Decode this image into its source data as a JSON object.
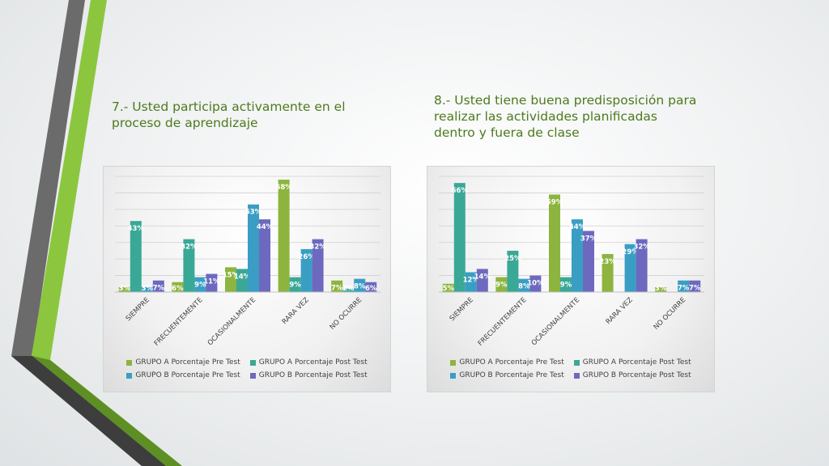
{
  "slide": {
    "title_left": "7.- Usted participa activamente en el proceso de aprendizaje",
    "title_right": "8.- Usted tiene buena predisposición para realizar las actividades planificadas dentro y fuera de clase"
  },
  "colors": {
    "grupo_a_pre": "#8db43e",
    "grupo_a_post": "#3aa896",
    "grupo_b_pre": "#3a9ec4",
    "grupo_b_post": "#6d69bf",
    "title": "#4d7a1c"
  },
  "legend_labels": [
    "GRUPO A Porcentaje Pre Test",
    "GRUPO A Porcentaje Post Test",
    "GRUPO B Porcentaje Pre Test",
    "GRUPO B Porcentaje Post Test"
  ],
  "chart_data": [
    {
      "type": "bar",
      "categories": [
        "SIEMPRE",
        "FRECUENTEMENTE",
        "OCASIONALMENTE",
        "RARA VEZ",
        "NO OCURRE"
      ],
      "series": [
        {
          "name": "GRUPO A Porcentaje Pre Test",
          "values": [
            3,
            6,
            15,
            68,
            7
          ],
          "labels": [
            "3%",
            "6%",
            "15%",
            "68%",
            "7%"
          ]
        },
        {
          "name": "GRUPO A Porcentaje Post Test",
          "values": [
            43,
            32,
            14,
            9,
            2
          ],
          "labels": [
            "43%",
            "32%",
            "14%",
            "9%",
            "2%"
          ]
        },
        {
          "name": "GRUPO B Porcentaje Pre Test",
          "values": [
            3,
            9,
            53,
            26,
            8
          ],
          "labels": [
            "3%",
            "9%",
            "53%",
            "26%",
            "8%"
          ]
        },
        {
          "name": "GRUPO B Porcentaje Post Test",
          "values": [
            7,
            11,
            44,
            32,
            6
          ],
          "labels": [
            "7%",
            "11%",
            "44%",
            "32%",
            "6%"
          ]
        }
      ],
      "ylim": [
        0,
        70
      ],
      "grid": true,
      "legend": "bottom"
    },
    {
      "type": "bar",
      "categories": [
        "SIEMPRE",
        "FRECUENTEMENTE",
        "OCASIONALMENTE",
        "RARA VEZ",
        "NO OCURRE"
      ],
      "series": [
        {
          "name": "GRUPO A Porcentaje Pre Test",
          "values": [
            5,
            9,
            59,
            23,
            3
          ],
          "labels": [
            "5%",
            "9%",
            "59%",
            "23%",
            "3%"
          ]
        },
        {
          "name": "GRUPO A Porcentaje Post Test",
          "values": [
            66,
            25,
            9,
            0,
            0
          ],
          "labels": [
            "66%",
            "25%",
            "9%",
            "",
            ""
          ]
        },
        {
          "name": "GRUPO B Porcentaje Pre Test",
          "values": [
            12,
            8,
            44,
            29,
            7
          ],
          "labels": [
            "12%",
            "8%",
            "44%",
            "29%",
            "7%"
          ]
        },
        {
          "name": "GRUPO B Porcentaje Post Test",
          "values": [
            14,
            10,
            37,
            32,
            7
          ],
          "labels": [
            "14%",
            "10%",
            "37%",
            "32%",
            "7%"
          ]
        }
      ],
      "ylim": [
        0,
        70
      ],
      "grid": true,
      "legend": "bottom"
    }
  ]
}
